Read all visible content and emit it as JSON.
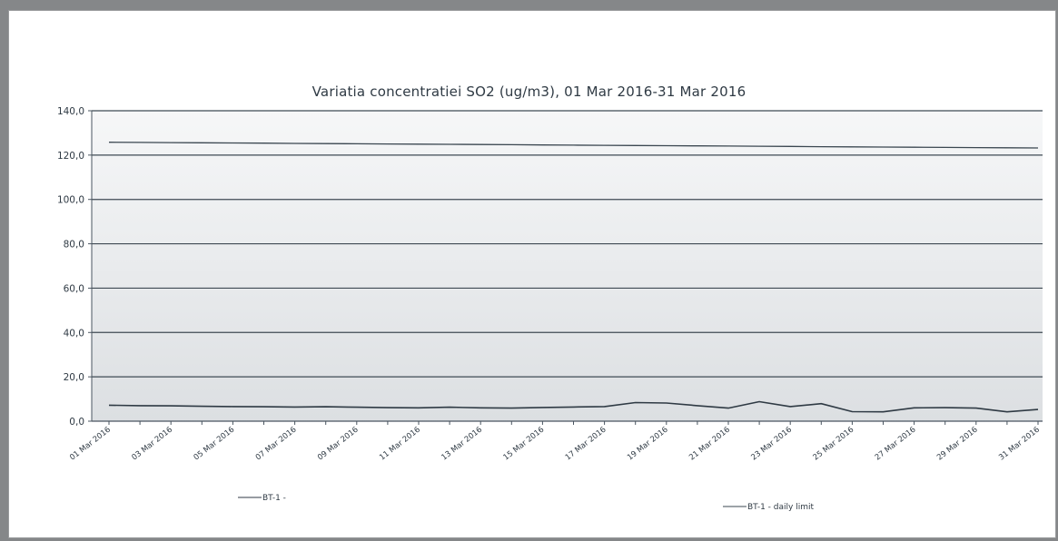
{
  "chart_data": {
    "type": "line",
    "title": "Variatia concentratiei  SO2 (ug/m3), 01 Mar 2016-31 Mar 2016",
    "xlabel": "",
    "ylabel": "",
    "ylim": [
      0,
      140
    ],
    "yticks": [
      "0,0",
      "20,0",
      "40,0",
      "60,0",
      "80,0",
      "100,0",
      "120,0",
      "140,0"
    ],
    "x": [
      "01 Mar 2016",
      "02 Mar 2016",
      "03 Mar 2016",
      "04 Mar 2016",
      "05 Mar 2016",
      "06 Mar 2016",
      "07 Mar 2016",
      "08 Mar 2016",
      "09 Mar 2016",
      "10 Mar 2016",
      "11 Mar 2016",
      "12 Mar 2016",
      "13 Mar 2016",
      "14 Mar 2016",
      "15 Mar 2016",
      "16 Mar 2016",
      "17 Mar 2016",
      "18 Mar 2016",
      "19 Mar 2016",
      "20 Mar 2016",
      "21 Mar 2016",
      "22 Mar 2016",
      "23 Mar 2016",
      "24 Mar 2016",
      "25 Mar 2016",
      "26 Mar 2016",
      "27 Mar 2016",
      "28 Mar 2016",
      "29 Mar 2016",
      "30 Mar 2016",
      "31 Mar 2016"
    ],
    "xtick_labels": [
      "01 Mar 2016",
      "03 Mar 2016",
      "05 Mar 2016",
      "07 Mar 2016",
      "09 Mar 2016",
      "11 Mar 2016",
      "13 Mar 2016",
      "15 Mar 2016",
      "17 Mar 2016",
      "19 Mar 2016",
      "21 Mar 2016",
      "23 Mar 2016",
      "25 Mar 2016",
      "27 Mar 2016",
      "29 Mar 2016",
      "31 Mar 2016"
    ],
    "series": [
      {
        "name": "BT-1 -",
        "values": [
          7.2,
          7.0,
          6.9,
          6.7,
          6.6,
          6.5,
          6.4,
          6.5,
          6.3,
          6.1,
          6.0,
          6.3,
          6.0,
          5.9,
          6.2,
          6.4,
          6.6,
          8.4,
          8.2,
          7.0,
          5.9,
          8.8,
          6.6,
          7.9,
          4.3,
          4.2,
          6.0,
          6.1,
          5.9,
          4.2,
          5.3
        ],
        "color": "#2f3a44"
      },
      {
        "name": "BT-1 - daily limit",
        "values": [
          125,
          125,
          125,
          125,
          125,
          125,
          125,
          125,
          125,
          125,
          125,
          125,
          125,
          125,
          125,
          125,
          125,
          125,
          125,
          125,
          125,
          125,
          125,
          125,
          125,
          125,
          125,
          125,
          125,
          125,
          125
        ],
        "color": "#3b4751"
      }
    ],
    "grid": true,
    "legend": "bottom"
  },
  "colors": {
    "plot_top": "#f6f7f8",
    "plot_bottom": "#dcdfe2",
    "grid": "#3f4a54",
    "axis": "#4a5560",
    "text": "#2f3a44"
  }
}
